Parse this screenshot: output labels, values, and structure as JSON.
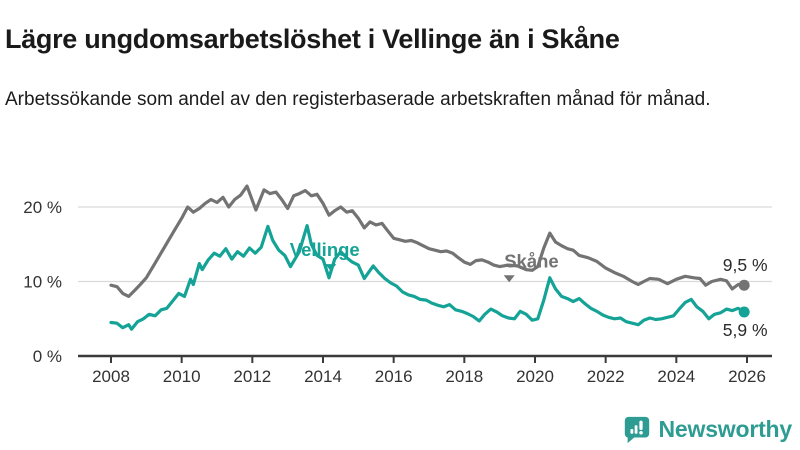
{
  "header": {
    "title": "Lägre ungdomsarbetslöshet i Vellinge än i Skåne",
    "subtitle": "Arbetssökande som andel av den registerbaserade arbetskraften månad för månad."
  },
  "footer": {
    "brand": "Newsworthy"
  },
  "colors": {
    "vellinge": "#14a396",
    "skane": "#737373",
    "axis": "#3a3a3a",
    "grid": "#d9d9d9",
    "label_text": "#333333",
    "value_text": "#2b2b2b",
    "brand_teal": "#2e9c92"
  },
  "chart_data": {
    "type": "line",
    "title": "Lägre ungdomsarbetslöshet i Vellinge än i Skåne",
    "subtitle": "Arbetssökande som andel av den registerbaserade arbetskraften månad för månad.",
    "xlabel": "",
    "ylabel": "",
    "xlim": [
      2007.6,
      2026.7
    ],
    "ylim": [
      0,
      23.5
    ],
    "grid": "horizontal",
    "legend": "inline-labels",
    "x_ticks": [
      2008,
      2010,
      2012,
      2014,
      2016,
      2018,
      2020,
      2022,
      2024,
      2026
    ],
    "y_ticks": [
      {
        "value": 0,
        "label": "0 %"
      },
      {
        "value": 10,
        "label": "10 %"
      },
      {
        "value": 20,
        "label": "20 %"
      }
    ],
    "series": [
      {
        "name": "Skåne",
        "color": "#737373",
        "end_label": "9,5 %",
        "end_label_position": "above",
        "x": [
          2008.0,
          2008.17,
          2008.33,
          2008.5,
          2008.67,
          2008.83,
          2009.0,
          2009.25,
          2009.5,
          2009.75,
          2010.0,
          2010.17,
          2010.33,
          2010.5,
          2010.67,
          2010.83,
          2011.0,
          2011.17,
          2011.33,
          2011.5,
          2011.67,
          2011.85,
          2012.1,
          2012.33,
          2012.5,
          2012.67,
          2012.83,
          2013.0,
          2013.17,
          2013.33,
          2013.5,
          2013.67,
          2013.83,
          2014.0,
          2014.17,
          2014.33,
          2014.5,
          2014.67,
          2014.83,
          2015.0,
          2015.17,
          2015.33,
          2015.5,
          2015.67,
          2015.83,
          2016.0,
          2016.17,
          2016.33,
          2016.5,
          2016.67,
          2016.83,
          2017.0,
          2017.17,
          2017.33,
          2017.5,
          2017.67,
          2017.83,
          2018.0,
          2018.17,
          2018.33,
          2018.5,
          2018.67,
          2018.83,
          2019.0,
          2019.25,
          2019.5,
          2019.75,
          2019.92,
          2020.08,
          2020.25,
          2020.42,
          2020.58,
          2020.75,
          2020.92,
          2021.08,
          2021.25,
          2021.5,
          2021.75,
          2022.0,
          2022.25,
          2022.5,
          2022.75,
          2022.92,
          2023.08,
          2023.25,
          2023.5,
          2023.75,
          2024.0,
          2024.25,
          2024.5,
          2024.67,
          2024.83,
          2025.0,
          2025.25,
          2025.42,
          2025.58,
          2025.75,
          2025.92
        ],
        "values": [
          9.5,
          9.3,
          8.4,
          8.0,
          8.8,
          9.6,
          10.5,
          12.5,
          14.5,
          16.5,
          18.5,
          20.0,
          19.3,
          19.8,
          20.5,
          21.0,
          20.6,
          21.3,
          20.0,
          21.0,
          21.6,
          22.8,
          19.6,
          22.3,
          21.8,
          22.0,
          21.0,
          19.8,
          21.5,
          21.8,
          22.2,
          21.5,
          21.7,
          20.5,
          18.9,
          19.5,
          20.0,
          19.3,
          19.5,
          18.5,
          17.2,
          18.0,
          17.6,
          17.8,
          16.8,
          15.8,
          15.6,
          15.4,
          15.5,
          15.2,
          14.8,
          14.4,
          14.2,
          14.0,
          14.1,
          13.8,
          13.2,
          12.6,
          12.3,
          12.8,
          12.9,
          12.6,
          12.2,
          12.0,
          12.2,
          12.1,
          11.6,
          11.5,
          12.0,
          14.5,
          16.5,
          15.3,
          14.8,
          14.4,
          14.2,
          13.5,
          13.2,
          12.7,
          11.8,
          11.2,
          10.7,
          10.0,
          9.6,
          10.0,
          10.4,
          10.3,
          9.7,
          10.3,
          10.7,
          10.5,
          10.4,
          9.5,
          10.0,
          10.3,
          10.1,
          9.0,
          9.6,
          9.5
        ]
      },
      {
        "name": "Vellinge",
        "color": "#14a396",
        "end_label": "5,9 %",
        "end_label_position": "below",
        "x": [
          2008.0,
          2008.17,
          2008.33,
          2008.5,
          2008.58,
          2008.75,
          2008.92,
          2009.08,
          2009.25,
          2009.42,
          2009.58,
          2009.75,
          2009.92,
          2010.08,
          2010.25,
          2010.33,
          2010.5,
          2010.58,
          2010.75,
          2010.92,
          2011.08,
          2011.25,
          2011.42,
          2011.58,
          2011.75,
          2011.92,
          2012.08,
          2012.25,
          2012.44,
          2012.58,
          2012.75,
          2012.92,
          2013.08,
          2013.33,
          2013.55,
          2013.67,
          2013.83,
          2014.0,
          2014.17,
          2014.33,
          2014.5,
          2014.67,
          2014.83,
          2015.0,
          2015.17,
          2015.42,
          2015.58,
          2015.75,
          2015.92,
          2016.08,
          2016.25,
          2016.42,
          2016.58,
          2016.75,
          2016.92,
          2017.08,
          2017.25,
          2017.42,
          2017.58,
          2017.75,
          2017.92,
          2018.08,
          2018.25,
          2018.42,
          2018.58,
          2018.75,
          2018.92,
          2019.08,
          2019.25,
          2019.42,
          2019.58,
          2019.75,
          2019.92,
          2020.08,
          2020.25,
          2020.42,
          2020.58,
          2020.75,
          2020.92,
          2021.08,
          2021.25,
          2021.42,
          2021.58,
          2021.75,
          2021.92,
          2022.08,
          2022.25,
          2022.42,
          2022.58,
          2022.75,
          2022.92,
          2023.08,
          2023.25,
          2023.42,
          2023.58,
          2023.75,
          2023.92,
          2024.08,
          2024.25,
          2024.42,
          2024.58,
          2024.75,
          2024.92,
          2025.08,
          2025.25,
          2025.42,
          2025.58,
          2025.75,
          2025.92
        ],
        "values": [
          4.5,
          4.4,
          3.8,
          4.2,
          3.6,
          4.6,
          5.0,
          5.6,
          5.4,
          6.2,
          6.4,
          7.4,
          8.4,
          8.0,
          10.3,
          9.6,
          12.4,
          11.6,
          12.9,
          13.8,
          13.4,
          14.4,
          13.0,
          14.0,
          13.4,
          14.5,
          13.8,
          14.6,
          17.4,
          15.5,
          14.2,
          13.5,
          12.0,
          14.0,
          17.5,
          15.0,
          13.5,
          13.0,
          10.5,
          13.0,
          14.0,
          13.2,
          12.6,
          12.2,
          10.4,
          12.1,
          11.2,
          10.4,
          9.8,
          9.4,
          8.6,
          8.2,
          8.0,
          7.6,
          7.5,
          7.1,
          6.8,
          6.6,
          6.9,
          6.2,
          6.0,
          5.7,
          5.3,
          4.7,
          5.6,
          6.3,
          5.9,
          5.4,
          5.1,
          5.0,
          6.0,
          5.6,
          4.8,
          5.0,
          7.5,
          10.5,
          9.0,
          8.0,
          7.7,
          7.3,
          7.7,
          7.0,
          6.4,
          6.0,
          5.5,
          5.2,
          5.0,
          5.1,
          4.6,
          4.4,
          4.2,
          4.8,
          5.1,
          4.9,
          5.0,
          5.2,
          5.4,
          6.3,
          7.2,
          7.6,
          6.6,
          6.0,
          5.0,
          5.6,
          5.8,
          6.3,
          6.1,
          6.4,
          5.9
        ]
      }
    ],
    "annotations": [
      {
        "text": "Vellinge",
        "x": 2014.05,
        "y": 14.2,
        "arrow_x": 2014.22,
        "arrow_y": 11.4,
        "color": "#14a396"
      },
      {
        "text": "Skåne",
        "x": 2019.9,
        "y": 12.7,
        "arrow_x": 2019.27,
        "arrow_y": 9.9,
        "color": "#737373"
      }
    ]
  }
}
